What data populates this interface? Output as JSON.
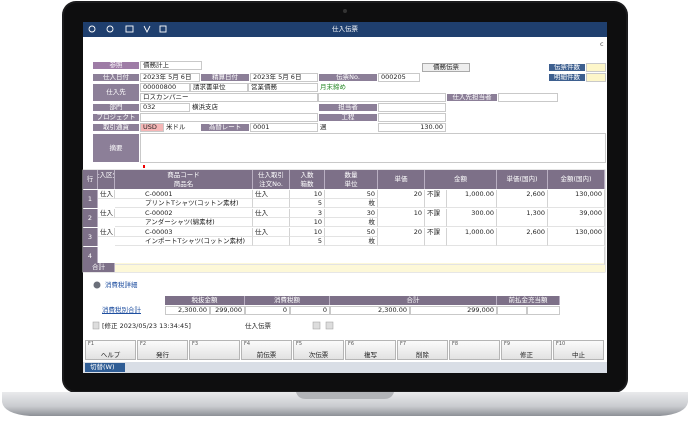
{
  "window": {
    "title": "仕入伝票",
    "refresh": "c"
  },
  "header": {
    "reference_label": "参照",
    "reference_value": "債務計上",
    "debt_button": "債務伝票",
    "slip_count_label": "伝票件数",
    "line_count_label": "明細件数",
    "purchase_date_label": "仕入日付",
    "purchase_date": "2023年 5月 6日",
    "settle_date_label": "精算日付",
    "settle_date": "2023年 5月 6日",
    "slip_no_label": "伝票No.",
    "slip_no": "000205",
    "supplier_label": "仕入先",
    "supplier_code": "00000800",
    "billing_unit": "請求書単位",
    "debt_type": "営業債務",
    "closing": "月末締め",
    "supplier_name": "ロスカンパニー",
    "supplier_contact_label": "仕入先担当者",
    "department_label": "部門",
    "department_code": "032",
    "department_name": "横浜支店",
    "staff_label": "担当者",
    "project_label": "プロジェクト",
    "process_label": "工程",
    "currency_label": "取引通貨",
    "currency_code": "USD",
    "currency_name": "米ドル",
    "rate_label": "為替レート",
    "rate_code": "0001",
    "rate_period": "週",
    "rate": "130.00",
    "memo_label": "摘要"
  },
  "table": {
    "headers": {
      "no": "行",
      "kind": "仕入区分",
      "code": "商品コード",
      "name": "商品名",
      "trade": "仕入取引",
      "order": "注文No.",
      "per_box": "入数",
      "boxes": "箱数",
      "qty": "数量",
      "unit": "単位",
      "price": "単価",
      "amount": "金額",
      "price_jp": "単価(国内)",
      "amount_jp": "金額(国内)"
    },
    "rows": [
      {
        "no": "1",
        "kind": "仕入",
        "code": "C-00001",
        "name": "プリントTシャツ(コットン素材)",
        "trade": "仕入",
        "per_box": "10",
        "boxes": "5",
        "qty": "50",
        "unit": "枚",
        "price": "20",
        "tax": "不課",
        "amount": "1,000.00",
        "price_jp": "2,600",
        "amount_jp": "130,000"
      },
      {
        "no": "2",
        "kind": "仕入",
        "code": "C-00002",
        "name": "アンダーシャツ(綿素材)",
        "trade": "仕入",
        "per_box": "3",
        "boxes": "10",
        "qty": "30",
        "unit": "枚",
        "price": "10",
        "tax": "不課",
        "amount": "300.00",
        "price_jp": "1,300",
        "amount_jp": "39,000"
      },
      {
        "no": "3",
        "kind": "仕入",
        "code": "C-00003",
        "name": "インポートTシャツ(コットン素材)",
        "trade": "仕入",
        "per_box": "10",
        "boxes": "5",
        "qty": "50",
        "unit": "枚",
        "price": "20",
        "tax": "不課",
        "amount": "1,000.00",
        "price_jp": "2,600",
        "amount_jp": "130,000"
      }
    ],
    "empty_row_no": "4",
    "total_label": "合計"
  },
  "tax": {
    "detail_link": "消費税詳細",
    "headers": [
      "税抜金額",
      "消費税額",
      "合計",
      "前払金充当額"
    ],
    "row_label": "消費税別合計",
    "values": [
      "2,300.00",
      "299,000",
      "0",
      "0",
      "2,300.00",
      "299,000"
    ]
  },
  "status": {
    "modified": "[修正 2023/05/23 13:34:45]",
    "slip_type": "仕入伝票",
    "switch": "切替(W)"
  },
  "function_keys": [
    {
      "key": "F1",
      "label": "ヘルプ"
    },
    {
      "key": "F2",
      "label": "発行"
    },
    {
      "key": "F3",
      "label": null
    },
    {
      "key": "F4",
      "label": "前伝票"
    },
    {
      "key": "F5",
      "label": "次伝票"
    },
    {
      "key": "F6",
      "label": "複写"
    },
    {
      "key": "F7",
      "label": "削除"
    },
    {
      "key": "F8",
      "label": null
    },
    {
      "key": "F9",
      "label": "修正"
    },
    {
      "key": "F10",
      "label": "中止"
    }
  ]
}
